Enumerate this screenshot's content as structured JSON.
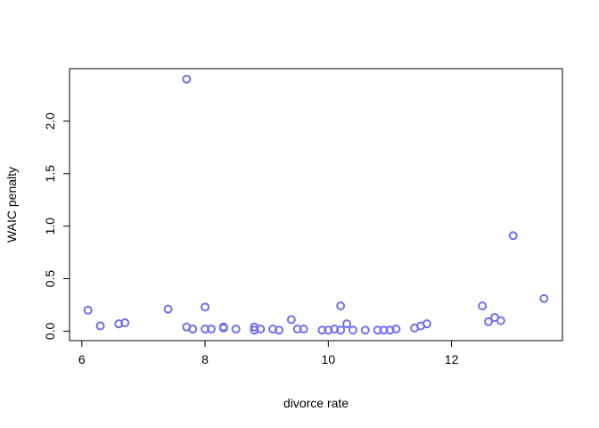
{
  "chart_data": {
    "type": "scatter",
    "title": "",
    "xlabel": "divorce rate",
    "ylabel": "WAIC penalty",
    "xlim": [
      5.8,
      13.8
    ],
    "ylim": [
      -0.09,
      2.5
    ],
    "x_ticks": [
      6,
      8,
      10,
      12
    ],
    "x_tick_labels": [
      "6",
      "8",
      "10",
      "12"
    ],
    "y_ticks": [
      0.0,
      0.5,
      1.0,
      1.5,
      2.0
    ],
    "y_tick_labels": [
      "0.0",
      "0.5",
      "1.0",
      "1.5",
      "2.0"
    ],
    "grid": false,
    "point_color": "#7070f0",
    "points": [
      [
        6.1,
        0.2
      ],
      [
        6.3,
        0.05
      ],
      [
        6.6,
        0.07
      ],
      [
        6.7,
        0.08
      ],
      [
        7.4,
        0.21
      ],
      [
        7.7,
        2.4
      ],
      [
        7.7,
        0.04
      ],
      [
        7.8,
        0.02
      ],
      [
        8.0,
        0.23
      ],
      [
        8.0,
        0.02
      ],
      [
        8.1,
        0.02
      ],
      [
        8.3,
        0.03
      ],
      [
        8.3,
        0.04
      ],
      [
        8.5,
        0.02
      ],
      [
        8.8,
        0.04
      ],
      [
        8.8,
        0.01
      ],
      [
        8.9,
        0.02
      ],
      [
        9.1,
        0.02
      ],
      [
        9.2,
        0.01
      ],
      [
        9.4,
        0.11
      ],
      [
        9.5,
        0.02
      ],
      [
        9.6,
        0.02
      ],
      [
        9.9,
        0.01
      ],
      [
        10.0,
        0.01
      ],
      [
        10.1,
        0.02
      ],
      [
        10.2,
        0.24
      ],
      [
        10.2,
        0.01
      ],
      [
        10.3,
        0.07
      ],
      [
        10.4,
        0.01
      ],
      [
        10.6,
        0.01
      ],
      [
        10.8,
        0.01
      ],
      [
        10.9,
        0.01
      ],
      [
        11.0,
        0.01
      ],
      [
        11.1,
        0.02
      ],
      [
        11.4,
        0.03
      ],
      [
        11.5,
        0.05
      ],
      [
        11.6,
        0.07
      ],
      [
        12.5,
        0.24
      ],
      [
        12.6,
        0.09
      ],
      [
        12.7,
        0.13
      ],
      [
        12.8,
        0.1
      ],
      [
        13.0,
        0.91
      ],
      [
        13.5,
        0.31
      ]
    ]
  }
}
